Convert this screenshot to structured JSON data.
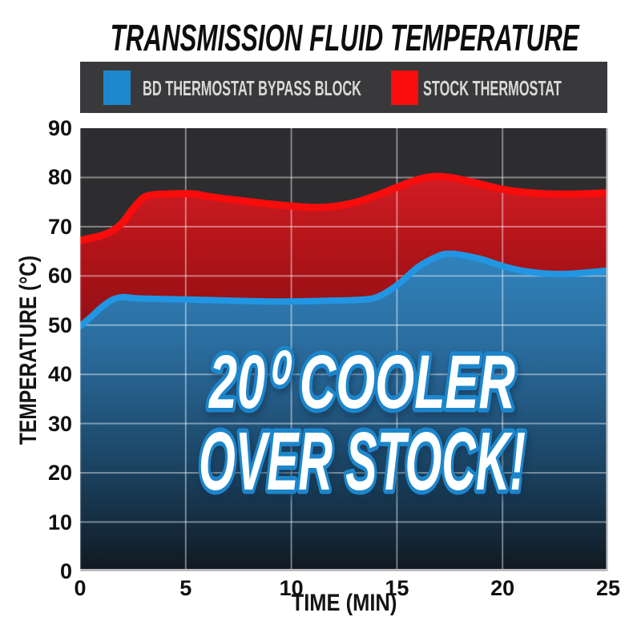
{
  "title": "TRANSMISSION FLUID TEMPERATURE",
  "legend": {
    "items": [
      {
        "id": "bd",
        "label": "BD THERMOSTAT BYPASS BLOCK",
        "color": "#1e88cf"
      },
      {
        "id": "stock",
        "label": "STOCK THERMOSTAT",
        "color": "#f90d0d"
      }
    ]
  },
  "annotation": {
    "line1": "20⁰ COOLER",
    "line2": "OVER STOCK!"
  },
  "axes": {
    "xlabel": "TIME (MIN)",
    "ylabel": "TEMPERATURE (°C)"
  },
  "colors": {
    "plot_background": "#2d2d2f",
    "legend_background": "#39393b",
    "gridline": "rgba(255,255,255,0.42)",
    "stock_line": "#f80c0c",
    "bd_line": "#2196e3",
    "callout_fill": "#ffffff",
    "callout_stroke": "#1d86cc"
  },
  "chart_data": {
    "type": "area",
    "title": "TRANSMISSION FLUID TEMPERATURE",
    "xlabel": "TIME (MIN)",
    "ylabel": "TEMPERATURE (°C)",
    "xlim": [
      0,
      25
    ],
    "ylim": [
      0,
      90
    ],
    "x_ticks": [
      0,
      5,
      10,
      15,
      20,
      25
    ],
    "y_ticks": [
      0,
      10,
      20,
      30,
      40,
      50,
      60,
      70,
      80,
      90
    ],
    "grid": true,
    "legend_position": "top",
    "annotation": "20⁰ COOLER OVER STOCK!",
    "series": [
      {
        "id": "stock",
        "name": "STOCK THERMOSTAT",
        "line_color": "#f80c0c",
        "points": [
          [
            0,
            67.2
          ],
          [
            0.5,
            67.7
          ],
          [
            1,
            68.2
          ],
          [
            1.5,
            69.1
          ],
          [
            2,
            70.8
          ],
          [
            2.5,
            73.6
          ],
          [
            3,
            75.9
          ],
          [
            3.5,
            76.5
          ],
          [
            4,
            76.6
          ],
          [
            4.5,
            76.7
          ],
          [
            5,
            76.7
          ],
          [
            5.5,
            76.6
          ],
          [
            6,
            76.2
          ],
          [
            7,
            75.6
          ],
          [
            8,
            75.1
          ],
          [
            9,
            74.6
          ],
          [
            10,
            74.2
          ],
          [
            11,
            73.9
          ],
          [
            12,
            74.1
          ],
          [
            13,
            74.9
          ],
          [
            14,
            76.3
          ],
          [
            15,
            78.0
          ],
          [
            16,
            79.6
          ],
          [
            16.8,
            80.2
          ],
          [
            17.5,
            80.0
          ],
          [
            18,
            79.6
          ],
          [
            19,
            78.6
          ],
          [
            20,
            77.6
          ],
          [
            21,
            77.0
          ],
          [
            22,
            76.7
          ],
          [
            23,
            76.6
          ],
          [
            24,
            76.7
          ],
          [
            25,
            76.9
          ]
        ]
      },
      {
        "id": "bd",
        "name": "BD THERMOSTAT BYPASS BLOCK",
        "line_color": "#2196e3",
        "points": [
          [
            0,
            49.8
          ],
          [
            0.5,
            51.6
          ],
          [
            1,
            53.6
          ],
          [
            1.5,
            55.1
          ],
          [
            2,
            55.7
          ],
          [
            2.5,
            55.5
          ],
          [
            3,
            55.4
          ],
          [
            4,
            55.3
          ],
          [
            5,
            55.2
          ],
          [
            6,
            55.1
          ],
          [
            7,
            55.0
          ],
          [
            8,
            54.9
          ],
          [
            9,
            54.8
          ],
          [
            10,
            54.8
          ],
          [
            11,
            54.9
          ],
          [
            12,
            55.0
          ],
          [
            13,
            55.1
          ],
          [
            14,
            55.6
          ],
          [
            15,
            58.1
          ],
          [
            16,
            61.8
          ],
          [
            17,
            64.1
          ],
          [
            17.5,
            64.5
          ],
          [
            18,
            64.3
          ],
          [
            19,
            63.4
          ],
          [
            20,
            62.0
          ],
          [
            21,
            61.0
          ],
          [
            22,
            60.5
          ],
          [
            23,
            60.4
          ],
          [
            24,
            60.7
          ],
          [
            25,
            61.1
          ]
        ]
      }
    ]
  }
}
